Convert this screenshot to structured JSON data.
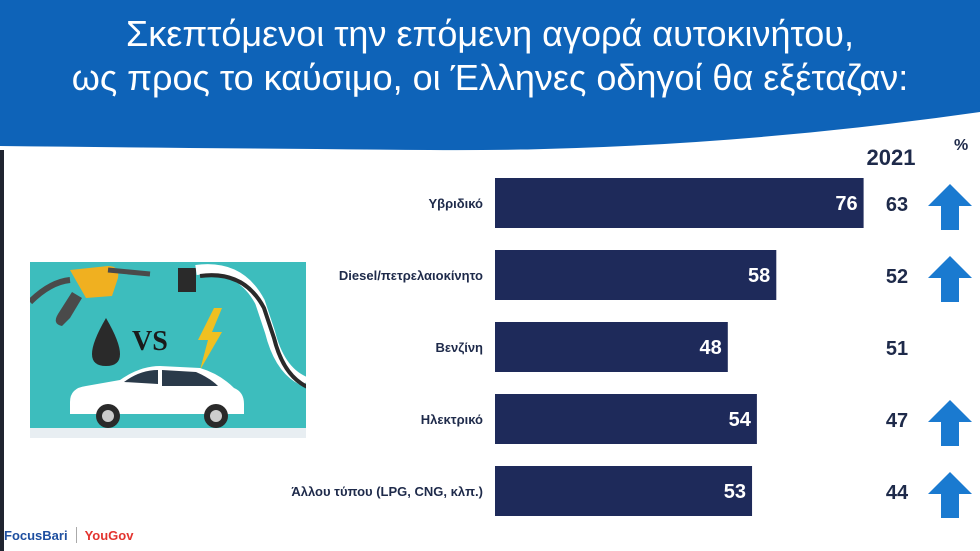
{
  "header": {
    "title_line1": "Σκεπτόμενοι την επόμενη αγορά αυτοκινήτου,",
    "title_line2": "ως προς το καύσιμο, οι Έλληνες οδηγοί θα εξέταζαν:",
    "color": "#0e63b8"
  },
  "comparison_column": {
    "label": "2021",
    "unit": "%"
  },
  "illustration": {
    "vs_label": "VS",
    "icons": [
      "fuel-nozzle-icon",
      "electric-plug-icon",
      "oil-drop-icon",
      "lightning-icon",
      "car-icon"
    ]
  },
  "logos": {
    "left": "FocusBari",
    "right": "YouGov"
  },
  "chart_data": {
    "type": "bar",
    "orientation": "horizontal",
    "categories": [
      "Υβριδικό",
      "Diesel/πετρελαιοκίνητο",
      "Βενζίνη",
      "Ηλεκτρικό",
      "Άλλου τύπου (LPG, CNG, κλπ.)"
    ],
    "values": [
      76,
      58,
      48,
      54,
      53
    ],
    "values_2021": [
      63,
      52,
      51,
      47,
      44
    ],
    "trend": [
      "up",
      "up",
      "",
      "up",
      "up"
    ],
    "bar_color": "#1e2a5a",
    "arrow_color": "#1a7ad0",
    "xlim": [
      0,
      100
    ]
  }
}
